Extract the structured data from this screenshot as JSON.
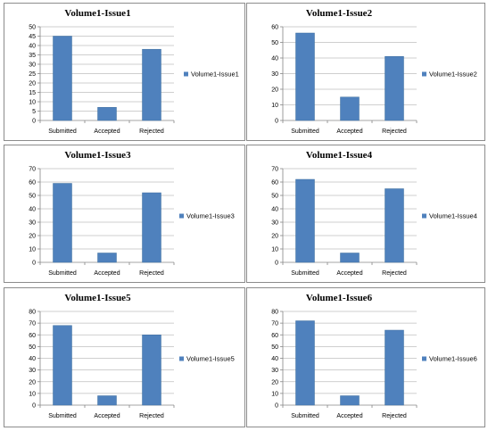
{
  "chart_data": [
    {
      "type": "bar",
      "title": "Volume1-Issue1",
      "categories": [
        "Submitted",
        "Accepted",
        "Rejected"
      ],
      "series": [
        {
          "name": "Volume1-Issue1",
          "values": [
            45,
            7,
            38
          ]
        }
      ],
      "ylim": [
        0,
        50
      ],
      "yticks": [
        0,
        5,
        10,
        15,
        20,
        25,
        30,
        35,
        40,
        45,
        50
      ],
      "grid": true,
      "legend": "right",
      "color": "#4f81bd"
    },
    {
      "type": "bar",
      "title": "Volume1-Issue2",
      "categories": [
        "Submitted",
        "Accepted",
        "Rejected"
      ],
      "series": [
        {
          "name": "Volume1-Issue2",
          "values": [
            56,
            15,
            41
          ]
        }
      ],
      "ylim": [
        0,
        60
      ],
      "yticks": [
        0,
        10,
        20,
        30,
        40,
        50,
        60
      ],
      "grid": true,
      "legend": "right",
      "color": "#4f81bd"
    },
    {
      "type": "bar",
      "title": "Volume1-Issue3",
      "categories": [
        "Submitted",
        "Accepted",
        "Rejected"
      ],
      "series": [
        {
          "name": "Volume1-Issue3",
          "values": [
            59,
            7,
            52
          ]
        }
      ],
      "ylim": [
        0,
        70
      ],
      "yticks": [
        0,
        10,
        20,
        30,
        40,
        50,
        60,
        70
      ],
      "grid": true,
      "legend": "right",
      "color": "#4f81bd"
    },
    {
      "type": "bar",
      "title": "Volume1-Issue4",
      "categories": [
        "Submitted",
        "Accepted",
        "Rejected"
      ],
      "series": [
        {
          "name": "Volume1-Issue4",
          "values": [
            62,
            7,
            55
          ]
        }
      ],
      "ylim": [
        0,
        70
      ],
      "yticks": [
        0,
        10,
        20,
        30,
        40,
        50,
        60,
        70
      ],
      "grid": true,
      "legend": "right",
      "color": "#4f81bd"
    },
    {
      "type": "bar",
      "title": "Volume1-Issue5",
      "categories": [
        "Submitted",
        "Accepted",
        "Rejected"
      ],
      "series": [
        {
          "name": "Volume1-Issue5",
          "values": [
            68,
            8,
            60
          ]
        }
      ],
      "ylim": [
        0,
        80
      ],
      "yticks": [
        0,
        10,
        20,
        30,
        40,
        50,
        60,
        70,
        80
      ],
      "grid": true,
      "legend": "right",
      "color": "#4f81bd"
    },
    {
      "type": "bar",
      "title": "Volume1-Issue6",
      "categories": [
        "Submitted",
        "Accepted",
        "Rejected"
      ],
      "series": [
        {
          "name": "Volume1-Issue6",
          "values": [
            72,
            8,
            64
          ]
        }
      ],
      "ylim": [
        0,
        80
      ],
      "yticks": [
        0,
        10,
        20,
        30,
        40,
        50,
        60,
        70,
        80
      ],
      "grid": true,
      "legend": "right",
      "color": "#4f81bd"
    }
  ]
}
